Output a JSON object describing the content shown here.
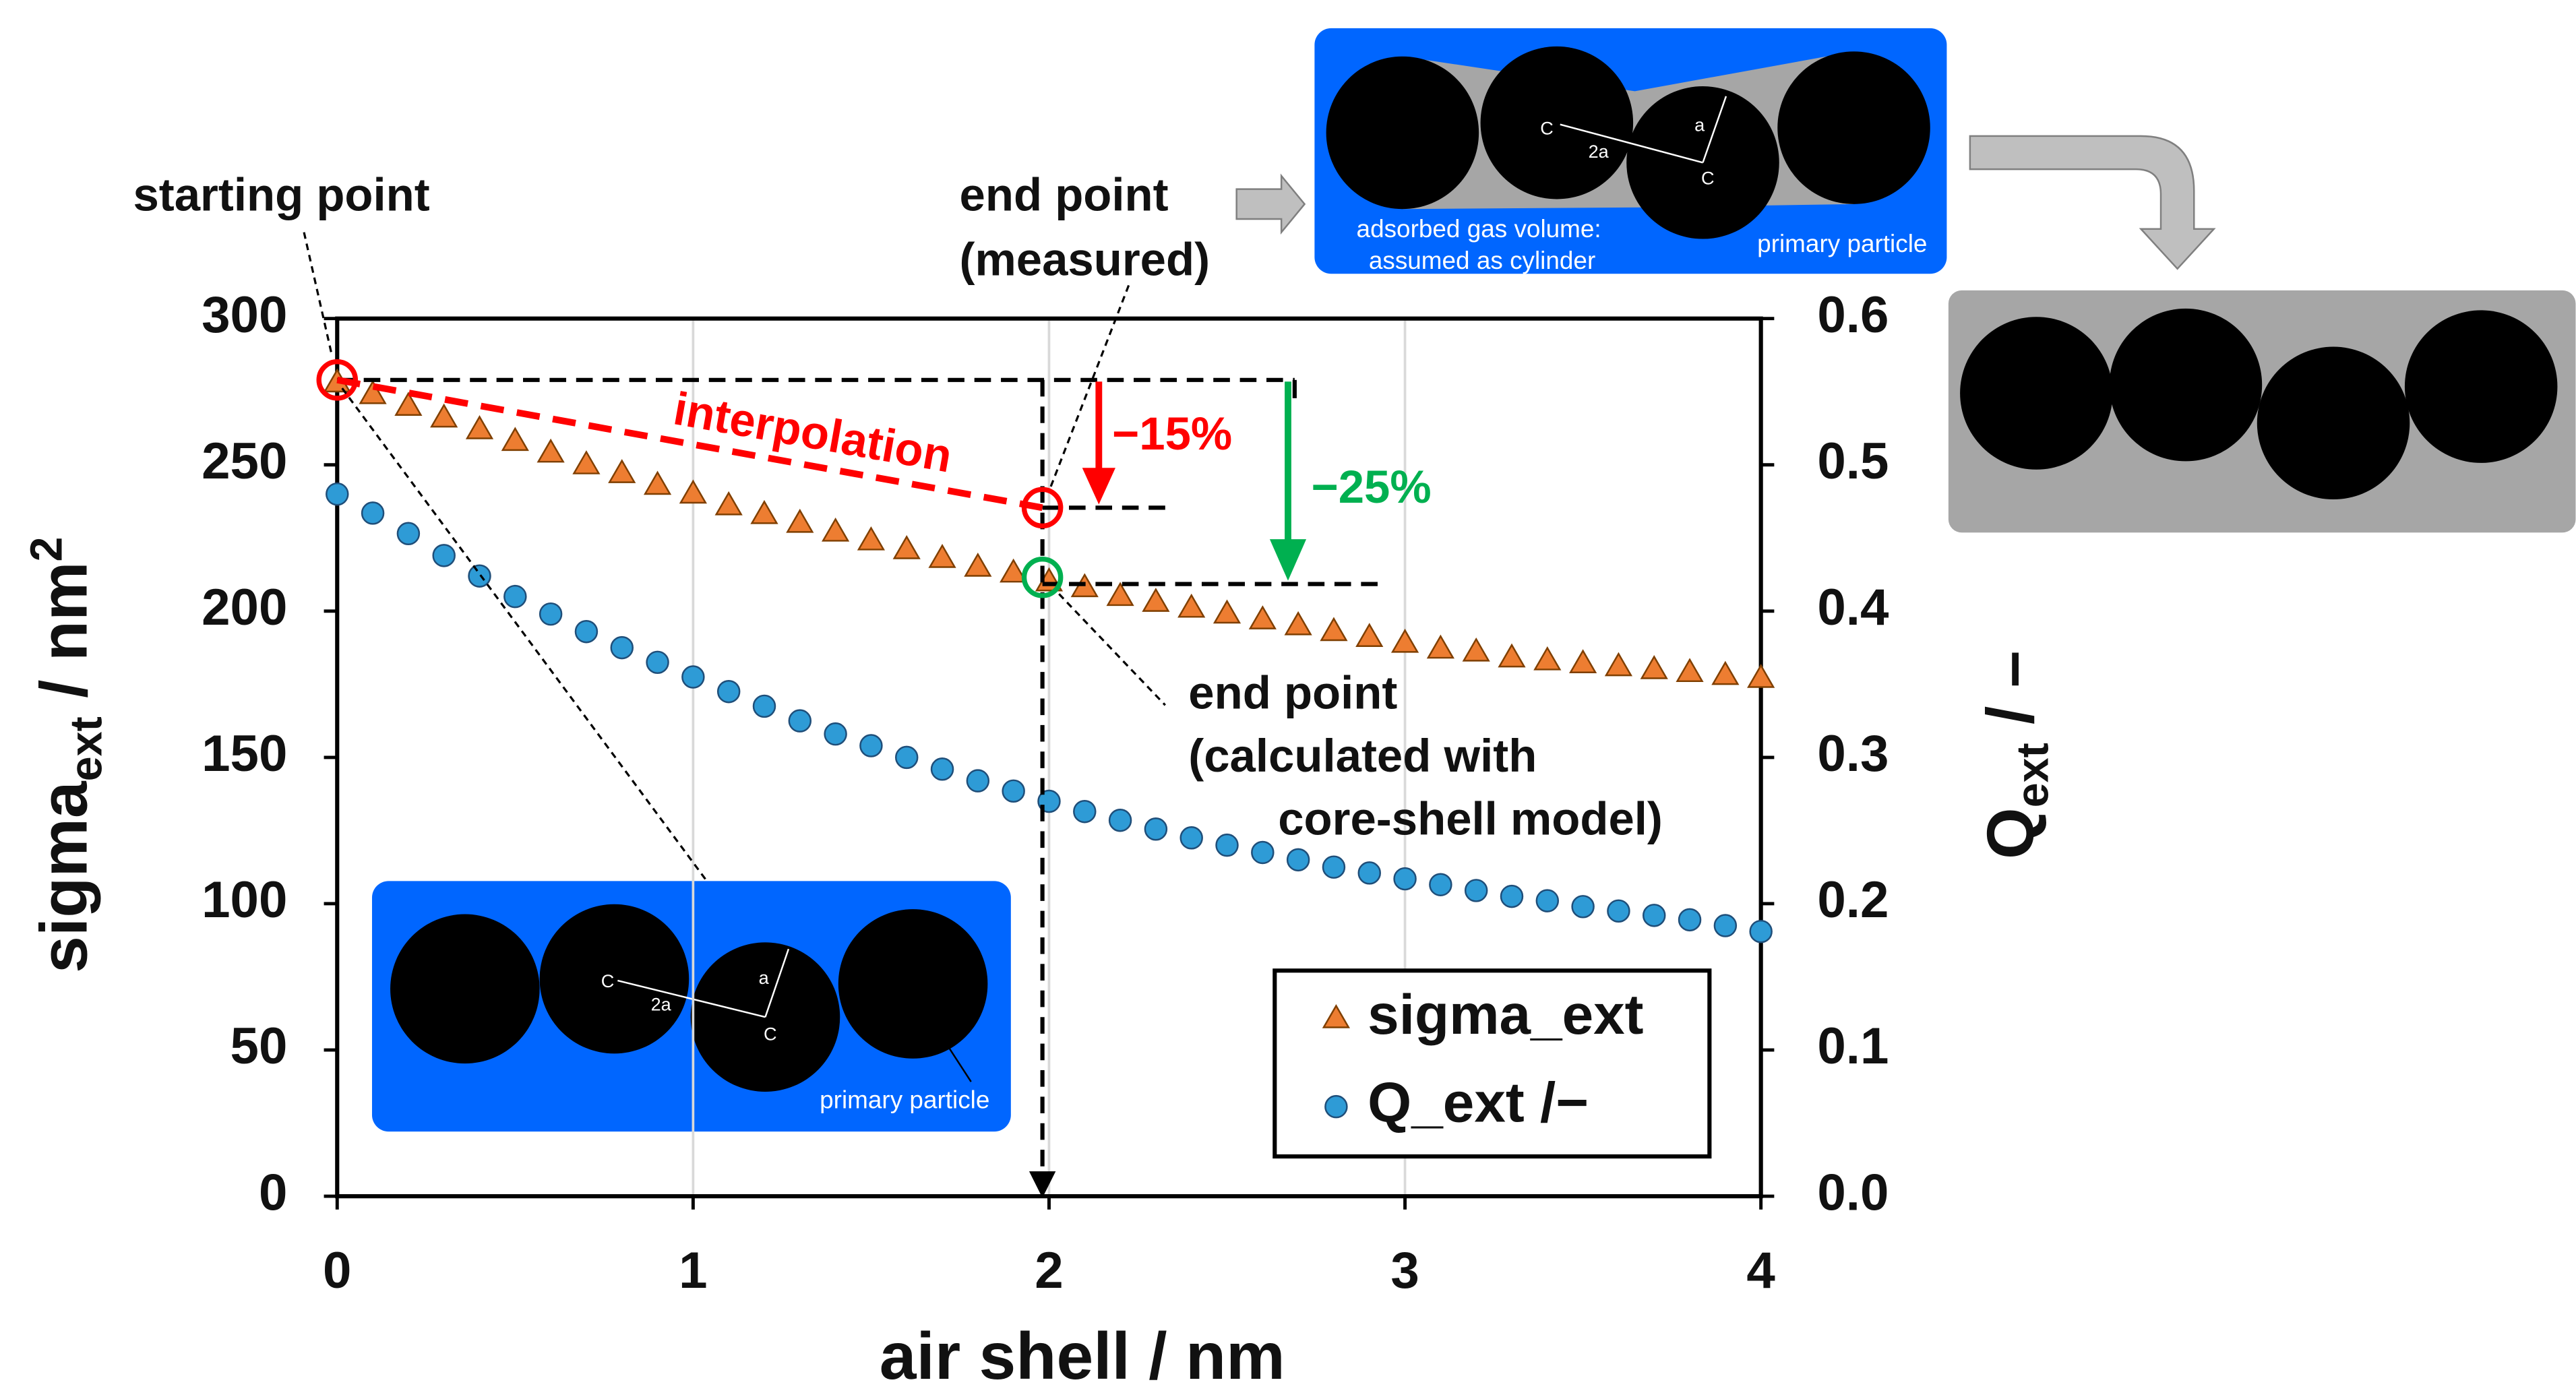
{
  "chart_data": {
    "type": "scatter",
    "x_label": "air shell / nm",
    "y_label": [
      "sigma",
      "ext",
      " / nm",
      "2"
    ],
    "y2_label": [
      "Q",
      "ext",
      " / –"
    ],
    "x": [
      0,
      0.1,
      0.2,
      0.3,
      0.4,
      0.5,
      0.6,
      0.7,
      0.8,
      0.9,
      1,
      1.1,
      1.2,
      1.3,
      1.4,
      1.5,
      1.6,
      1.7,
      1.8,
      1.9,
      2,
      2.1,
      2.2,
      2.3,
      2.4,
      2.5,
      2.6,
      2.7,
      2.8,
      2.9,
      3,
      3.1,
      3.2,
      3.3,
      3.4,
      3.5,
      3.6,
      3.7,
      3.8,
      3.9,
      4
    ],
    "series": [
      {
        "name": "sigma_ext",
        "color": "#ed7d31",
        "marker": "triangle",
        "axis": "y",
        "values": [
          278,
          274,
          270,
          266,
          262,
          258,
          254,
          250,
          247,
          243,
          240,
          236,
          233,
          230,
          227,
          224,
          221,
          218,
          215,
          213,
          210,
          208,
          205,
          203,
          201,
          199,
          197,
          195,
          193,
          191,
          189,
          187,
          186,
          184,
          183,
          182,
          181,
          180,
          179,
          178,
          177
        ]
      },
      {
        "name": "Q_ext /−",
        "color": "#2e9bd6",
        "marker": "circle",
        "axis": "y2",
        "values": [
          0.48,
          0.467,
          0.453,
          0.438,
          0.424,
          0.41,
          0.398,
          0.386,
          0.375,
          0.365,
          0.355,
          0.345,
          0.335,
          0.325,
          0.316,
          0.308,
          0.3,
          0.292,
          0.284,
          0.277,
          0.27,
          0.263,
          0.257,
          0.251,
          0.245,
          0.24,
          0.235,
          0.23,
          0.225,
          0.221,
          0.217,
          0.213,
          0.209,
          0.205,
          0.202,
          0.198,
          0.195,
          0.192,
          0.189,
          0.185,
          0.181
        ]
      }
    ],
    "xlim": [
      0,
      4
    ],
    "xticks": [
      0,
      1,
      2,
      3,
      4
    ],
    "ylim": [
      0,
      300
    ],
    "yticks": [
      0,
      50,
      100,
      150,
      200,
      250,
      300
    ],
    "y2lim": [
      0,
      0.6
    ],
    "y2ticks": [
      {
        "value": 0,
        "label": "0.0"
      },
      0.1,
      0.2,
      0.3,
      0.4,
      0.5,
      0.6
    ],
    "grid": true,
    "legend": "lower-right",
    "annotations": [
      "starting point",
      "end point",
      "(measured)",
      "interpolation",
      "−15%",
      "−25%",
      "end point",
      "(calculated with",
      "core-shell model)"
    ],
    "insets": [
      "C",
      "2a",
      "a",
      "C",
      "primary particle",
      "C",
      "2a",
      "a",
      "C",
      "adsorbed gas volume:",
      "assumed as cylinder",
      "primary particle"
    ]
  }
}
